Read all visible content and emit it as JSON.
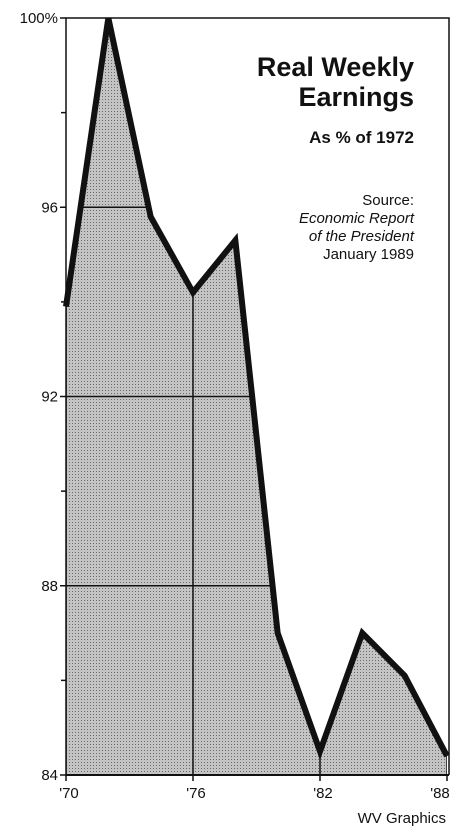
{
  "chart_data": {
    "type": "area",
    "title": [
      "Real Weekly",
      "Earnings"
    ],
    "subtitle": "As % of 1972",
    "source_label": "Source:",
    "source": [
      "Economic Report",
      "of the President"
    ],
    "source_date": "January 1989",
    "credit": "WV Graphics",
    "x": [
      1970,
      1972,
      1974,
      1976,
      1978,
      1980,
      1982,
      1984,
      1986,
      1988
    ],
    "values": [
      93.9,
      100,
      95.8,
      94.2,
      95.3,
      87.0,
      84.5,
      87.0,
      86.1,
      84.4
    ],
    "color": "#b4b4b4",
    "line_color": "#111111",
    "xlim": [
      1970,
      1988
    ],
    "xticks": [
      {
        "value": 1970,
        "label": "'70"
      },
      {
        "value": 1976,
        "label": "'76"
      },
      {
        "value": 1982,
        "label": "'82"
      },
      {
        "value": 1988,
        "label": "'88"
      }
    ],
    "ylim": [
      84,
      100
    ],
    "yticks": [
      84,
      88,
      92,
      96,
      {
        "value": 100,
        "label": "100%"
      }
    ],
    "yminorticks": [
      86,
      90,
      94,
      98
    ],
    "grid": true
  }
}
